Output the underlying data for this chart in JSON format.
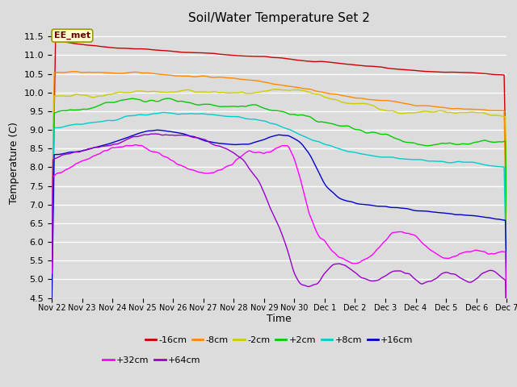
{
  "title": "Soil/Water Temperature Set 2",
  "ylabel": "Temperature (C)",
  "xlabel": "Time",
  "ylim": [
    4.5,
    11.75
  ],
  "plot_bg_color": "#dcdcdc",
  "annotation_text": "EE_met",
  "annotation_bg": "#ffffcc",
  "annotation_border": "#999900",
  "series": [
    {
      "label": "-16cm",
      "color": "#cc0000"
    },
    {
      "label": "-8cm",
      "color": "#ff8800"
    },
    {
      "label": "-2cm",
      "color": "#cccc00"
    },
    {
      "label": "+2cm",
      "color": "#00cc00"
    },
    {
      "label": "+8cm",
      "color": "#00cccc"
    },
    {
      "label": "+16cm",
      "color": "#0000cc"
    },
    {
      "label": "+32cm",
      "color": "#ff00ff"
    },
    {
      "label": "+64cm",
      "color": "#9900cc"
    }
  ],
  "xtick_labels": [
    "Nov 22",
    "Nov 23",
    "Nov 24",
    "Nov 25",
    "Nov 26",
    "Nov 27",
    "Nov 28",
    "Nov 29",
    "Nov 30",
    "Dec 1",
    "Dec 2",
    "Dec 3",
    "Dec 4",
    "Dec 5",
    "Dec 6",
    "Dec 7"
  ],
  "n_points": 360,
  "figsize": [
    6.4,
    4.8
  ],
  "dpi": 100
}
